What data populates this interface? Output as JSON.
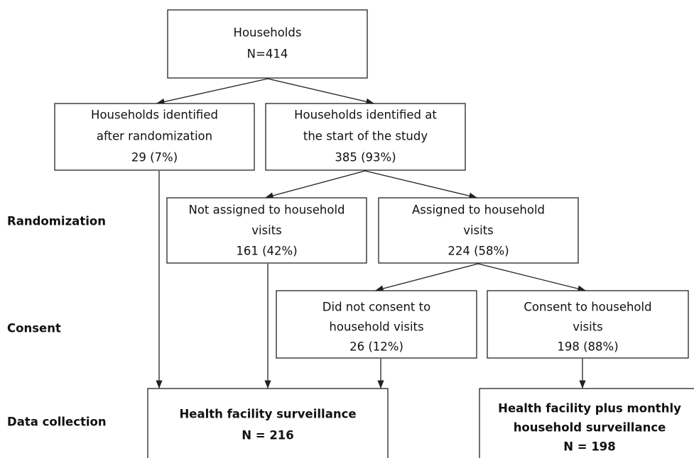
{
  "nodes": [
    {
      "lines": [
        "Households",
        "N=414"
      ]
    },
    {
      "lines": [
        "Households identified",
        "after randomization",
        "29 (7%)"
      ]
    },
    {
      "lines": [
        "Households identified at",
        "the start of the study",
        "385 (93%)"
      ]
    },
    {
      "lines": [
        "Not assigned to household",
        "visits",
        "161 (42%)"
      ]
    },
    {
      "lines": [
        "Assigned to household",
        "visits",
        "224 (58%)"
      ]
    },
    {
      "lines": [
        "Did not consent to",
        "household visits",
        "26 (12%)"
      ]
    },
    {
      "lines": [
        "Consent to household",
        "visits",
        "198 (88%)"
      ]
    },
    {
      "lines": [
        "Health facility surveillance",
        "N = 216"
      ]
    },
    {
      "lines": [
        "Health facility plus monthly",
        "household surveillance",
        "N = 198"
      ]
    }
  ],
  "stages": [
    "Randomization",
    "Consent",
    "Data collection"
  ]
}
